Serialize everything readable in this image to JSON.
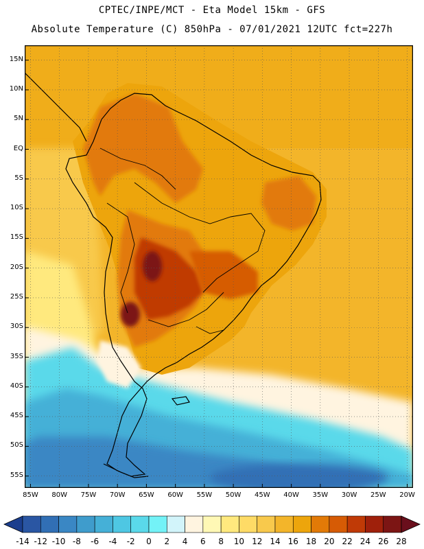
{
  "header": {
    "line1": "CPTEC/INPE/MCT -  Eta Model 15km - GFS",
    "line2": "Absolute Temperature (C) 850hPa - 07/01/2021 12UTC fct=227h"
  },
  "map": {
    "lat_labels": [
      "15N",
      "10N",
      "5N",
      "EQ",
      "5S",
      "10S",
      "15S",
      "20S",
      "25S",
      "30S",
      "35S",
      "40S",
      "45S",
      "50S",
      "55S"
    ],
    "lon_labels": [
      "85W",
      "80W",
      "75W",
      "70W",
      "65W",
      "60W",
      "55W",
      "50W",
      "45W",
      "40W",
      "35W",
      "30W",
      "25W",
      "20W"
    ],
    "lat_range": [
      17.5,
      -57
    ],
    "lon_range": [
      -86,
      -19
    ]
  },
  "colorbar": {
    "labels": [
      "-14",
      "-12",
      "-10",
      "-8",
      "-6",
      "-4",
      "-2",
      "0",
      "2",
      "4",
      "6",
      "8",
      "10",
      "12",
      "14",
      "16",
      "18",
      "20",
      "22",
      "24",
      "26",
      "28"
    ],
    "colors": [
      "#1b3e8e",
      "#2a56a3",
      "#316fb5",
      "#3a87c4",
      "#3f9ccc",
      "#45b0d7",
      "#4ec7e3",
      "#5ad9ea",
      "#73f2f7",
      "#d2f4fa",
      "#fff4e0",
      "#fff8b5",
      "#ffe97e",
      "#fedb66",
      "#f8c94c",
      "#f3b52a",
      "#eda50c",
      "#e27a07",
      "#d65b05",
      "#c03a06",
      "#9f200b",
      "#7c1514",
      "#6a0f1c"
    ]
  },
  "colors": {
    "cold_deep": "#1b3e8e",
    "cold": "#3f9ccc",
    "cyan": "#5ad9ea",
    "pale": "#fff4e0",
    "warm": "#f3b52a",
    "hot": "#e27a07",
    "hotter": "#c03a06",
    "hottest": "#7c1514"
  }
}
